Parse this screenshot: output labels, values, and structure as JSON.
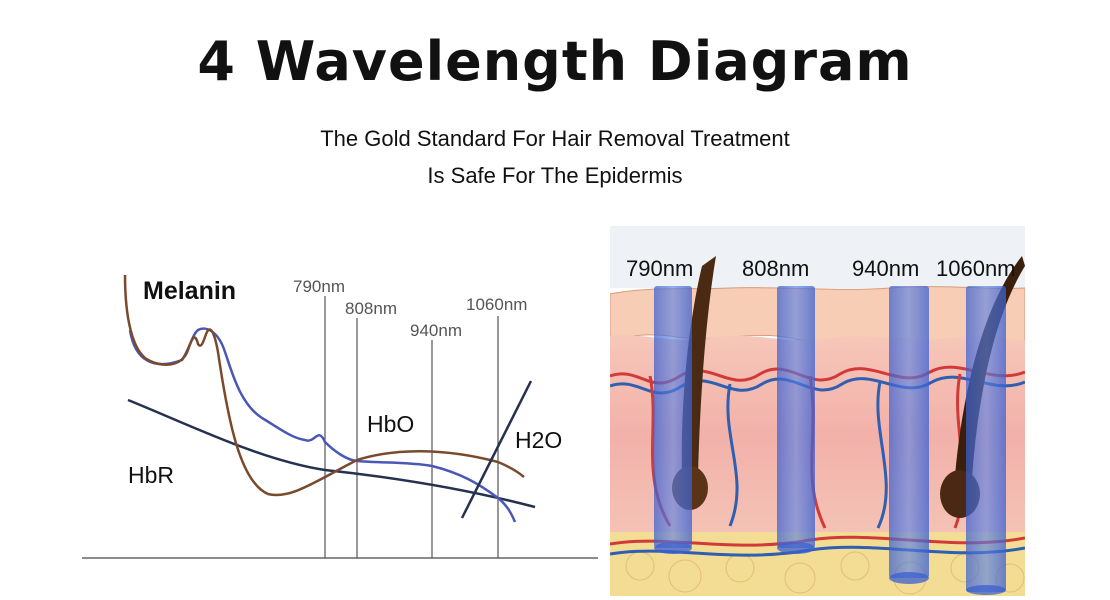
{
  "title": "4 Wavelength Diagram",
  "subtitle_line1": "The Gold Standard For Hair Removal Treatment",
  "subtitle_line2": "Is Safe For The Epidermis",
  "chart": {
    "labels": {
      "melanin": "Melanin",
      "hbo": "HbO",
      "hbr": "HbR",
      "h2o": "H2O"
    },
    "wavelengths": [
      "790nm",
      "808nm",
      "940nm",
      "1060nm"
    ],
    "colors": {
      "melanin": "#7a4a2c",
      "hbo": "#4b57b5",
      "hbr": "#24314f",
      "h2o": "#24314f"
    }
  },
  "skin_panel": {
    "wavelengths": [
      "790nm",
      "808nm",
      "940nm",
      "1060nm"
    ],
    "colors": {
      "beam": "#3f66d6",
      "epidermis": "#f6c8b4",
      "dermis": "#f2b4ae",
      "fat": "#f0d88a",
      "artery": "#d23a3a",
      "vein": "#2f5fb0",
      "hair": "#4a2a12"
    }
  }
}
